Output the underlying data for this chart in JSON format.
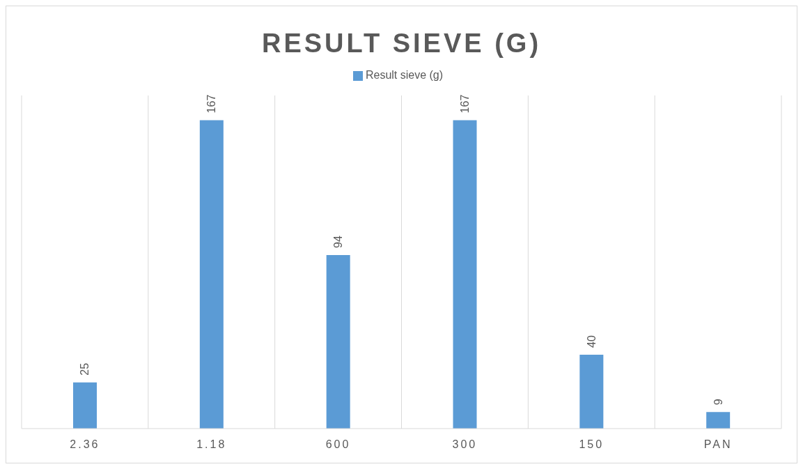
{
  "chart_data": {
    "type": "bar",
    "title": "RESULT SIEVE (G)",
    "categories": [
      "2.36",
      "1.18",
      "600",
      "300",
      "150",
      "PAN"
    ],
    "series": [
      {
        "name": "Result sieve (g)",
        "color": "#5b9bd5",
        "values": [
          25,
          167,
          94,
          167,
          40,
          9
        ]
      }
    ],
    "tick_labels": "x",
    "data_labels": true,
    "grid": "x",
    "legend": "top"
  }
}
